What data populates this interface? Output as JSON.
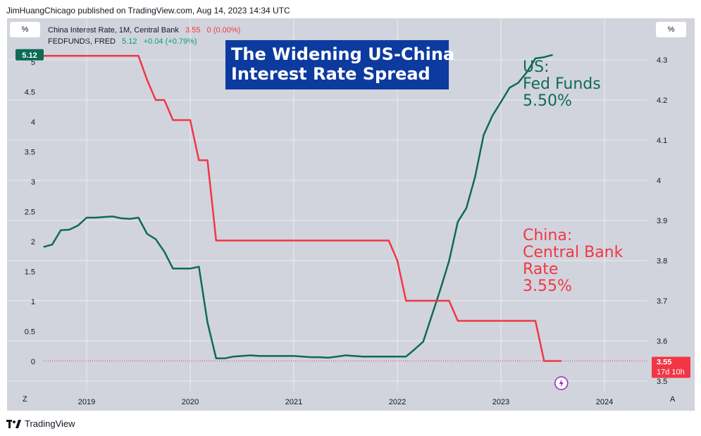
{
  "attribution": "JimHuangChicago published on TradingView.com, Aug 14, 2023 14:34 UTC",
  "percent_button_label": "%",
  "legend": [
    {
      "name": "China Interest Rate, 1M, Central Bank",
      "value": "3.55",
      "change": "0 (0.00%)",
      "color": "#f23645"
    },
    {
      "name": "FEDFUNDS, FRED",
      "value": "5.12",
      "change": "+0.04 (+0.79%)",
      "color": "#089981"
    }
  ],
  "title_lines": [
    "The Widening US-China",
    "Interest Rate Spread"
  ],
  "annotations": {
    "us": [
      "US:",
      "Fed Funds",
      "5.50%"
    ],
    "china": [
      "China:",
      "Central Bank",
      "Rate",
      "3.55%"
    ]
  },
  "badges": {
    "left": "5.12",
    "right_value": "3.55",
    "right_countdown": "17d 10h"
  },
  "bottom_left_letter": "Z",
  "bottom_right_letter": "A",
  "brand": "TradingView",
  "colors": {
    "us": "#0e6b55",
    "china": "#f23645",
    "title_bg": "#0d3a9e",
    "grid": "#ffffff",
    "panel": "#d1d4dc"
  },
  "chart_data": {
    "type": "line",
    "x_ticks": [
      "2019",
      "2020",
      "2021",
      "2022",
      "2023",
      "2024"
    ],
    "y_left_ticks": [
      "0",
      "0.5",
      "1",
      "1.5",
      "2",
      "2.5",
      "3",
      "3.5",
      "4",
      "4.5",
      "5"
    ],
    "y_right_ticks": [
      "3.5",
      "3.6",
      "3.7",
      "3.8",
      "3.9",
      "4",
      "4.1",
      "4.2",
      "4.3"
    ],
    "y_left_range": [
      0,
      5.12
    ],
    "y_right_range": [
      3.5,
      4.3
    ],
    "series": [
      {
        "name": "FEDFUNDS, FRED",
        "axis": "left",
        "color": "#0e6b55",
        "points": [
          [
            "2018-08",
            1.91
          ],
          [
            "2018-09",
            1.95
          ],
          [
            "2018-10",
            2.19
          ],
          [
            "2018-11",
            2.2
          ],
          [
            "2018-12",
            2.27
          ],
          [
            "2019-01",
            2.4
          ],
          [
            "2019-02",
            2.4
          ],
          [
            "2019-03",
            2.41
          ],
          [
            "2019-04",
            2.42
          ],
          [
            "2019-05",
            2.39
          ],
          [
            "2019-06",
            2.38
          ],
          [
            "2019-07",
            2.4
          ],
          [
            "2019-08",
            2.13
          ],
          [
            "2019-09",
            2.04
          ],
          [
            "2019-10",
            1.83
          ],
          [
            "2019-11",
            1.55
          ],
          [
            "2019-12",
            1.55
          ],
          [
            "2020-01",
            1.55
          ],
          [
            "2020-02",
            1.58
          ],
          [
            "2020-03",
            0.65
          ],
          [
            "2020-04",
            0.05
          ],
          [
            "2020-05",
            0.05
          ],
          [
            "2020-06",
            0.08
          ],
          [
            "2020-07",
            0.09
          ],
          [
            "2020-08",
            0.1
          ],
          [
            "2020-09",
            0.09
          ],
          [
            "2020-10",
            0.09
          ],
          [
            "2020-11",
            0.09
          ],
          [
            "2020-12",
            0.09
          ],
          [
            "2021-01",
            0.09
          ],
          [
            "2021-02",
            0.08
          ],
          [
            "2021-03",
            0.07
          ],
          [
            "2021-04",
            0.07
          ],
          [
            "2021-05",
            0.06
          ],
          [
            "2021-06",
            0.08
          ],
          [
            "2021-07",
            0.1
          ],
          [
            "2021-08",
            0.09
          ],
          [
            "2021-09",
            0.08
          ],
          [
            "2021-10",
            0.08
          ],
          [
            "2021-11",
            0.08
          ],
          [
            "2021-12",
            0.08
          ],
          [
            "2022-01",
            0.08
          ],
          [
            "2022-02",
            0.08
          ],
          [
            "2022-03",
            0.2
          ],
          [
            "2022-04",
            0.33
          ],
          [
            "2022-05",
            0.77
          ],
          [
            "2022-06",
            1.21
          ],
          [
            "2022-07",
            1.68
          ],
          [
            "2022-08",
            2.33
          ],
          [
            "2022-09",
            2.56
          ],
          [
            "2022-10",
            3.08
          ],
          [
            "2022-11",
            3.78
          ],
          [
            "2022-12",
            4.1
          ],
          [
            "2023-01",
            4.33
          ],
          [
            "2023-02",
            4.57
          ],
          [
            "2023-03",
            4.65
          ],
          [
            "2023-04",
            4.83
          ],
          [
            "2023-05",
            5.06
          ],
          [
            "2023-06",
            5.08
          ],
          [
            "2023-07",
            5.12
          ]
        ]
      },
      {
        "name": "China Interest Rate, 1M, Central Bank",
        "axis": "right",
        "color": "#f23645",
        "points": [
          [
            "2018-08",
            4.31
          ],
          [
            "2019-07",
            4.31
          ],
          [
            "2019-08",
            4.25
          ],
          [
            "2019-09",
            4.2
          ],
          [
            "2019-10",
            4.2
          ],
          [
            "2019-11",
            4.15
          ],
          [
            "2019-12",
            4.15
          ],
          [
            "2020-01",
            4.15
          ],
          [
            "2020-02",
            4.05
          ],
          [
            "2020-03",
            4.05
          ],
          [
            "2020-04",
            3.85
          ],
          [
            "2021-12",
            3.85
          ],
          [
            "2022-01",
            3.8
          ],
          [
            "2022-02",
            3.7
          ],
          [
            "2022-07",
            3.7
          ],
          [
            "2022-08",
            3.65
          ],
          [
            "2023-05",
            3.65
          ],
          [
            "2023-06",
            3.55
          ],
          [
            "2023-08",
            3.55
          ]
        ]
      }
    ]
  }
}
